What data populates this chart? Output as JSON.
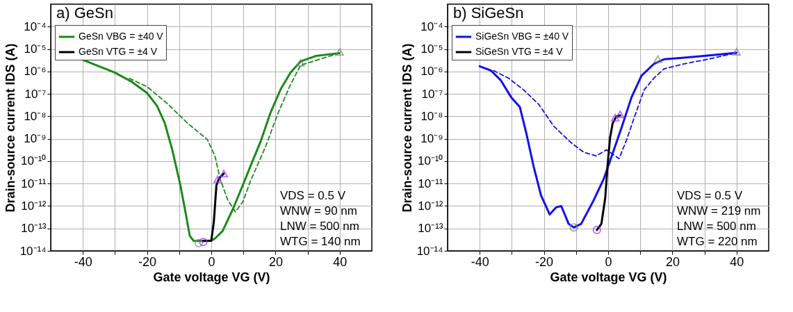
{
  "chart_data": [
    {
      "type": "line",
      "title": "a) GeSn",
      "xlabel": "Gate voltage VG (V)",
      "ylabel": "Drain-source current IDS (A)",
      "log": "y",
      "grid": true,
      "legend": "top left",
      "xlim": [
        -50,
        50
      ],
      "xticks": [
        -40,
        {
          "value": -30,
          "label": null
        },
        -20,
        {
          "value": -10,
          "label": null
        },
        0,
        {
          "value": 10,
          "label": null
        },
        20,
        {
          "value": 30,
          "label": null
        },
        40
      ],
      "ylim": [
        1e-14,
        0.001
      ],
      "yticks": [
        {
          "value": 1e-14,
          "label": "10⁻¹⁴"
        },
        {
          "value": 1e-13,
          "label": "10⁻¹³"
        },
        {
          "value": 1e-12,
          "label": "10⁻¹²"
        },
        {
          "value": 1e-11,
          "label": "10⁻¹¹"
        },
        {
          "value": 1e-10,
          "label": "10⁻¹⁰"
        },
        {
          "value": 1e-09,
          "label": "10⁻⁹"
        },
        {
          "value": 1e-08,
          "label": "10⁻⁸"
        },
        {
          "value": 1e-07,
          "label": "10⁻⁷"
        },
        {
          "value": 1e-06,
          "label": "10⁻⁶"
        },
        {
          "value": 1e-05,
          "label": "10⁻⁵"
        },
        {
          "value": 0.0001,
          "label": "10⁻⁴"
        }
      ],
      "annotations": [
        "VDS  = 0.5 V",
        "WNW = 90 nm",
        "LNW = 500 nm",
        "WTG = 140 nm"
      ],
      "series": [
        {
          "name": "GeSn VBG = ±40 V",
          "type": "line",
          "color": "#1a8a1a",
          "line_style": "solid",
          "x": [
            -40,
            -35.8,
            -30.2,
            -24.7,
            -20,
            -16.9,
            -14.5,
            -12.2,
            -9.8,
            -8.2,
            -6.7,
            -5.5,
            -2.7,
            0,
            1.2,
            3.5,
            6.7,
            9.8,
            12.2,
            15.3,
            18.4,
            21.6,
            24.7,
            27.8,
            32.5,
            40
          ],
          "values": [
            3.3e-06,
            1.9e-06,
            9.1e-07,
            3.4e-07,
            1.1e-07,
            2.9e-08,
            5.1e-09,
            3.4e-10,
            1.1e-11,
            7.1e-13,
            4.7e-14,
            2.8e-14,
            2.7e-14,
            2.8e-14,
            3.6e-14,
            7.6e-14,
            7.1e-13,
            8.3e-12,
            6e-11,
            7.1e-10,
            1.4e-08,
            1.6e-07,
            9.1e-07,
            2.8e-06,
            4.9e-06,
            6.6e-06
          ]
        },
        {
          "type": "line",
          "color": "#1a8a1a",
          "line_style": "dashed",
          "x": [
            -25.5,
            -20,
            -13.7,
            -7.5,
            -1.2,
            1.2,
            2.7,
            5.1,
            7.5,
            9.8,
            12.2,
            16.9,
            20.8,
            24.7,
            27.8,
            40
          ],
          "values": [
            4.9e-07,
            2.1e-07,
            3.7e-08,
            5.1e-09,
            9.1e-10,
            1.6e-10,
            1.7e-11,
            1.9e-12,
            5.5e-13,
            1.5e-12,
            1.3e-11,
            4.4e-10,
            1.4e-08,
            2.6e-07,
            1.9e-06,
            6.6e-06
          ]
        },
        {
          "name": "GeSn VTG = ±4 V",
          "type": "line",
          "color": "#000000",
          "line_style": "solid",
          "x": [
            -2.7,
            0,
            0.8,
            1.6,
            2.4,
            3.9
          ],
          "values": [
            2.8e-14,
            2.8e-14,
            2e-13,
            8.3e-12,
            1.7e-11,
            2.8e-11
          ]
        },
        {
          "type": "scatter",
          "marker": "circle",
          "color": "#808080",
          "x": [
            -3.9
          ],
          "values": [
            2.2e-14
          ]
        },
        {
          "type": "scatter",
          "marker": "triangle",
          "color": "#808080",
          "x": [
            27.8,
            40
          ],
          "values": [
            2.2e-06,
            6.6e-06
          ]
        },
        {
          "type": "scatter",
          "marker": "circle",
          "color": "#9933ff",
          "x": [
            -2.5
          ],
          "values": [
            2.5e-14
          ]
        },
        {
          "type": "scatter",
          "marker": "triangle",
          "color": "#9933ff",
          "x": [
            2,
            3.9
          ],
          "values": [
            1.4e-11,
            2.5e-11
          ]
        }
      ]
    },
    {
      "type": "line",
      "title": "b) SiGeSn",
      "xlabel": "Gate voltage VG (V)",
      "ylabel": "Drain-source current IDS (A)",
      "log": "y",
      "grid": true,
      "legend": "top left",
      "xlim": [
        -50,
        50
      ],
      "xticks": [
        -40,
        {
          "value": -30,
          "label": null
        },
        -20,
        {
          "value": -10,
          "label": null
        },
        0,
        {
          "value": 10,
          "label": null
        },
        20,
        {
          "value": 30,
          "label": null
        },
        40
      ],
      "ylim": [
        1e-14,
        0.001
      ],
      "yticks": [
        {
          "value": 1e-14,
          "label": "10⁻¹⁴"
        },
        {
          "value": 1e-13,
          "label": "10⁻¹³"
        },
        {
          "value": 1e-12,
          "label": "10⁻¹²"
        },
        {
          "value": 1e-11,
          "label": "10⁻¹¹"
        },
        {
          "value": 1e-10,
          "label": "10⁻¹⁰"
        },
        {
          "value": 1e-09,
          "label": "10⁻⁹"
        },
        {
          "value": 1e-08,
          "label": "10⁻⁸"
        },
        {
          "value": 1e-07,
          "label": "10⁻⁷"
        },
        {
          "value": 1e-06,
          "label": "10⁻⁶"
        },
        {
          "value": 1e-05,
          "label": "10⁻⁵"
        },
        {
          "value": 0.0001,
          "label": "10⁻⁴"
        }
      ],
      "annotations": [
        "VDS  = 0.5 V",
        "WNW = 219 nm",
        "LNW = 500 nm",
        "WTG = 220 nm"
      ],
      "series": [
        {
          "name": "SiGeSn VBG = ±40 V",
          "type": "line",
          "color": "#1010f0",
          "line_style": "solid",
          "x": [
            -40,
            -36.5,
            -33.4,
            -30.2,
            -27.5,
            -25.5,
            -23.2,
            -20.9,
            -18.2,
            -16.2,
            -14.6,
            -12.3,
            -10.7,
            -8.4,
            -4.5,
            -1.3,
            1.0,
            4.1,
            7.3,
            10.4,
            14.3,
            17.4,
            23.7,
            31.5,
            40
          ],
          "values": [
            1.7e-06,
            1.1e-06,
            4e-07,
            7.1e-08,
            2.6e-08,
            1.8e-09,
            5.8e-11,
            3e-12,
            4.2e-13,
            8.7e-13,
            1e-12,
            1.6e-13,
            1.1e-13,
            1.6e-13,
            1.8e-12,
            1.7e-11,
            1.5e-10,
            2.9e-09,
            7.1e-08,
            6.5e-07,
            2.2e-06,
            3.5e-06,
            4.1e-06,
            5.2e-06,
            6.8e-06
          ]
        },
        {
          "type": "line",
          "color": "#1010f0",
          "line_style": "dashed",
          "x": [
            -35.7,
            -31,
            -26.3,
            -21.6,
            -17,
            -11.5,
            -7.6,
            -3.7,
            -0.5,
            3.4,
            5.7,
            8.0,
            11.2,
            14.3,
            17.4,
            23.7,
            31.5,
            40
          ],
          "values": [
            1.1e-06,
            5e-07,
            1.5e-07,
            3.4e-08,
            3.7e-09,
            6.6e-10,
            2.5e-10,
            1.7e-10,
            3.2e-10,
            1.3e-10,
            8.5e-10,
            7.8e-09,
            1.5e-07,
            5.1e-07,
            1.3e-06,
            2.2e-06,
            3.6e-06,
            6.8e-06
          ]
        },
        {
          "name": "SiGeSn VTG = ±4 V",
          "type": "line",
          "color": "#000000",
          "line_style": "solid",
          "x": [
            -3.5,
            -2.1,
            -0.9,
            -0.2,
            0.6,
            1.4,
            2.6,
            3.75
          ],
          "values": [
            8.5e-14,
            1.6e-13,
            2.3e-12,
            5.8e-11,
            1.1e-09,
            4.8e-09,
            1e-08,
            1.1e-08
          ]
        },
        {
          "type": "scatter",
          "marker": "circle",
          "color": "#808080",
          "x": [
            -10.7
          ],
          "values": [
            1.1e-13
          ]
        },
        {
          "type": "scatter",
          "marker": "triangle",
          "color": "#808080",
          "x": [
            15.5,
            40
          ],
          "values": [
            3.2e-06,
            6.8e-06
          ]
        },
        {
          "type": "scatter",
          "marker": "circle",
          "color": "#9933ff",
          "x": [
            -3.5
          ],
          "values": [
            8.5e-14
          ]
        },
        {
          "type": "scatter",
          "marker": "triangle",
          "color": "#9933ff",
          "x": [
            2.2,
            3.75
          ],
          "values": [
            7.8e-09,
            1.1e-08
          ]
        }
      ]
    }
  ]
}
